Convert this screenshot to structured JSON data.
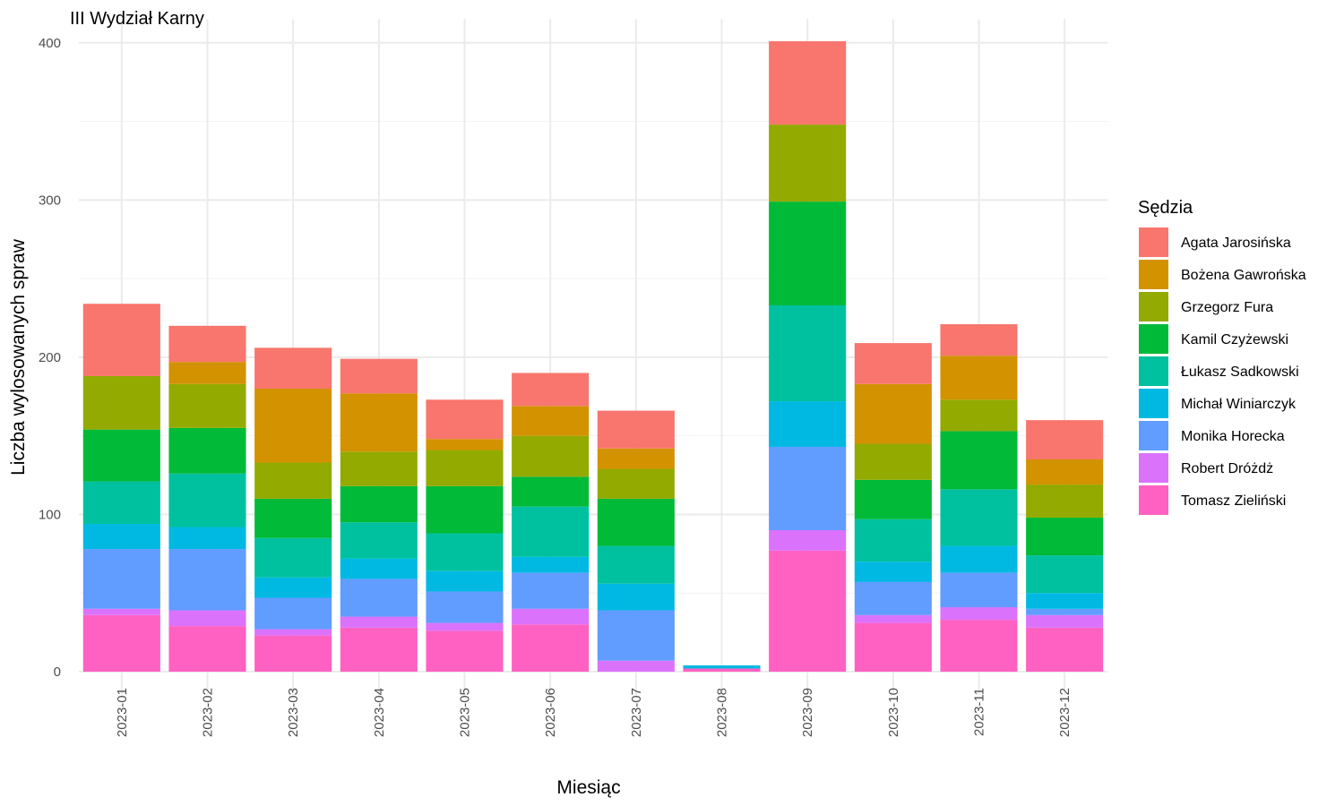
{
  "chart_data": {
    "type": "bar",
    "stacked": true,
    "title": "III Wydział Karny",
    "xlabel": "Miesiąc",
    "ylabel": "Liczba wylosowanych spraw",
    "ylim": [
      0,
      415
    ],
    "yticks": [
      0,
      100,
      200,
      300,
      400
    ],
    "grid": true,
    "legend_title": "Sędzia",
    "legend_position": "right",
    "categories": [
      "2023-01",
      "2023-02",
      "2023-03",
      "2023-04",
      "2023-05",
      "2023-06",
      "2023-07",
      "2023-08",
      "2023-09",
      "2023-10",
      "2023-11",
      "2023-12"
    ],
    "series": [
      {
        "name": "Tomasz Zieliński",
        "color": "#FF61C3",
        "values": [
          36,
          29,
          23,
          28,
          26,
          30,
          0,
          2,
          77,
          31,
          33,
          28
        ]
      },
      {
        "name": "Robert Dróżdż",
        "color": "#DB72FB",
        "values": [
          4,
          10,
          4,
          7,
          5,
          10,
          7,
          0,
          13,
          5,
          8,
          8
        ]
      },
      {
        "name": "Monika Horecka",
        "color": "#619CFF",
        "values": [
          38,
          39,
          20,
          24,
          20,
          23,
          32,
          0,
          53,
          21,
          22,
          4
        ]
      },
      {
        "name": "Michał Winiarczyk",
        "color": "#00B9E3",
        "values": [
          16,
          14,
          13,
          13,
          13,
          10,
          17,
          2,
          29,
          13,
          17,
          10
        ]
      },
      {
        "name": "Łukasz Sadkowski",
        "color": "#00C19F",
        "values": [
          27,
          34,
          25,
          23,
          24,
          32,
          24,
          0,
          61,
          27,
          36,
          24
        ]
      },
      {
        "name": "Kamil Czyżewski",
        "color": "#00BA38",
        "values": [
          33,
          29,
          25,
          23,
          30,
          19,
          30,
          0,
          66,
          25,
          37,
          24
        ]
      },
      {
        "name": "Grzegorz Fura",
        "color": "#93AA00",
        "values": [
          34,
          28,
          23,
          22,
          23,
          26,
          19,
          0,
          49,
          23,
          20,
          21
        ]
      },
      {
        "name": "Bożena Gawrońska",
        "color": "#D39200",
        "values": [
          0,
          14,
          47,
          37,
          7,
          19,
          13,
          0,
          0,
          38,
          28,
          16
        ]
      },
      {
        "name": "Agata Jarosińska",
        "color": "#F8766D",
        "values": [
          46,
          23,
          26,
          22,
          25,
          21,
          24,
          0,
          53,
          26,
          20,
          25
        ]
      }
    ]
  }
}
